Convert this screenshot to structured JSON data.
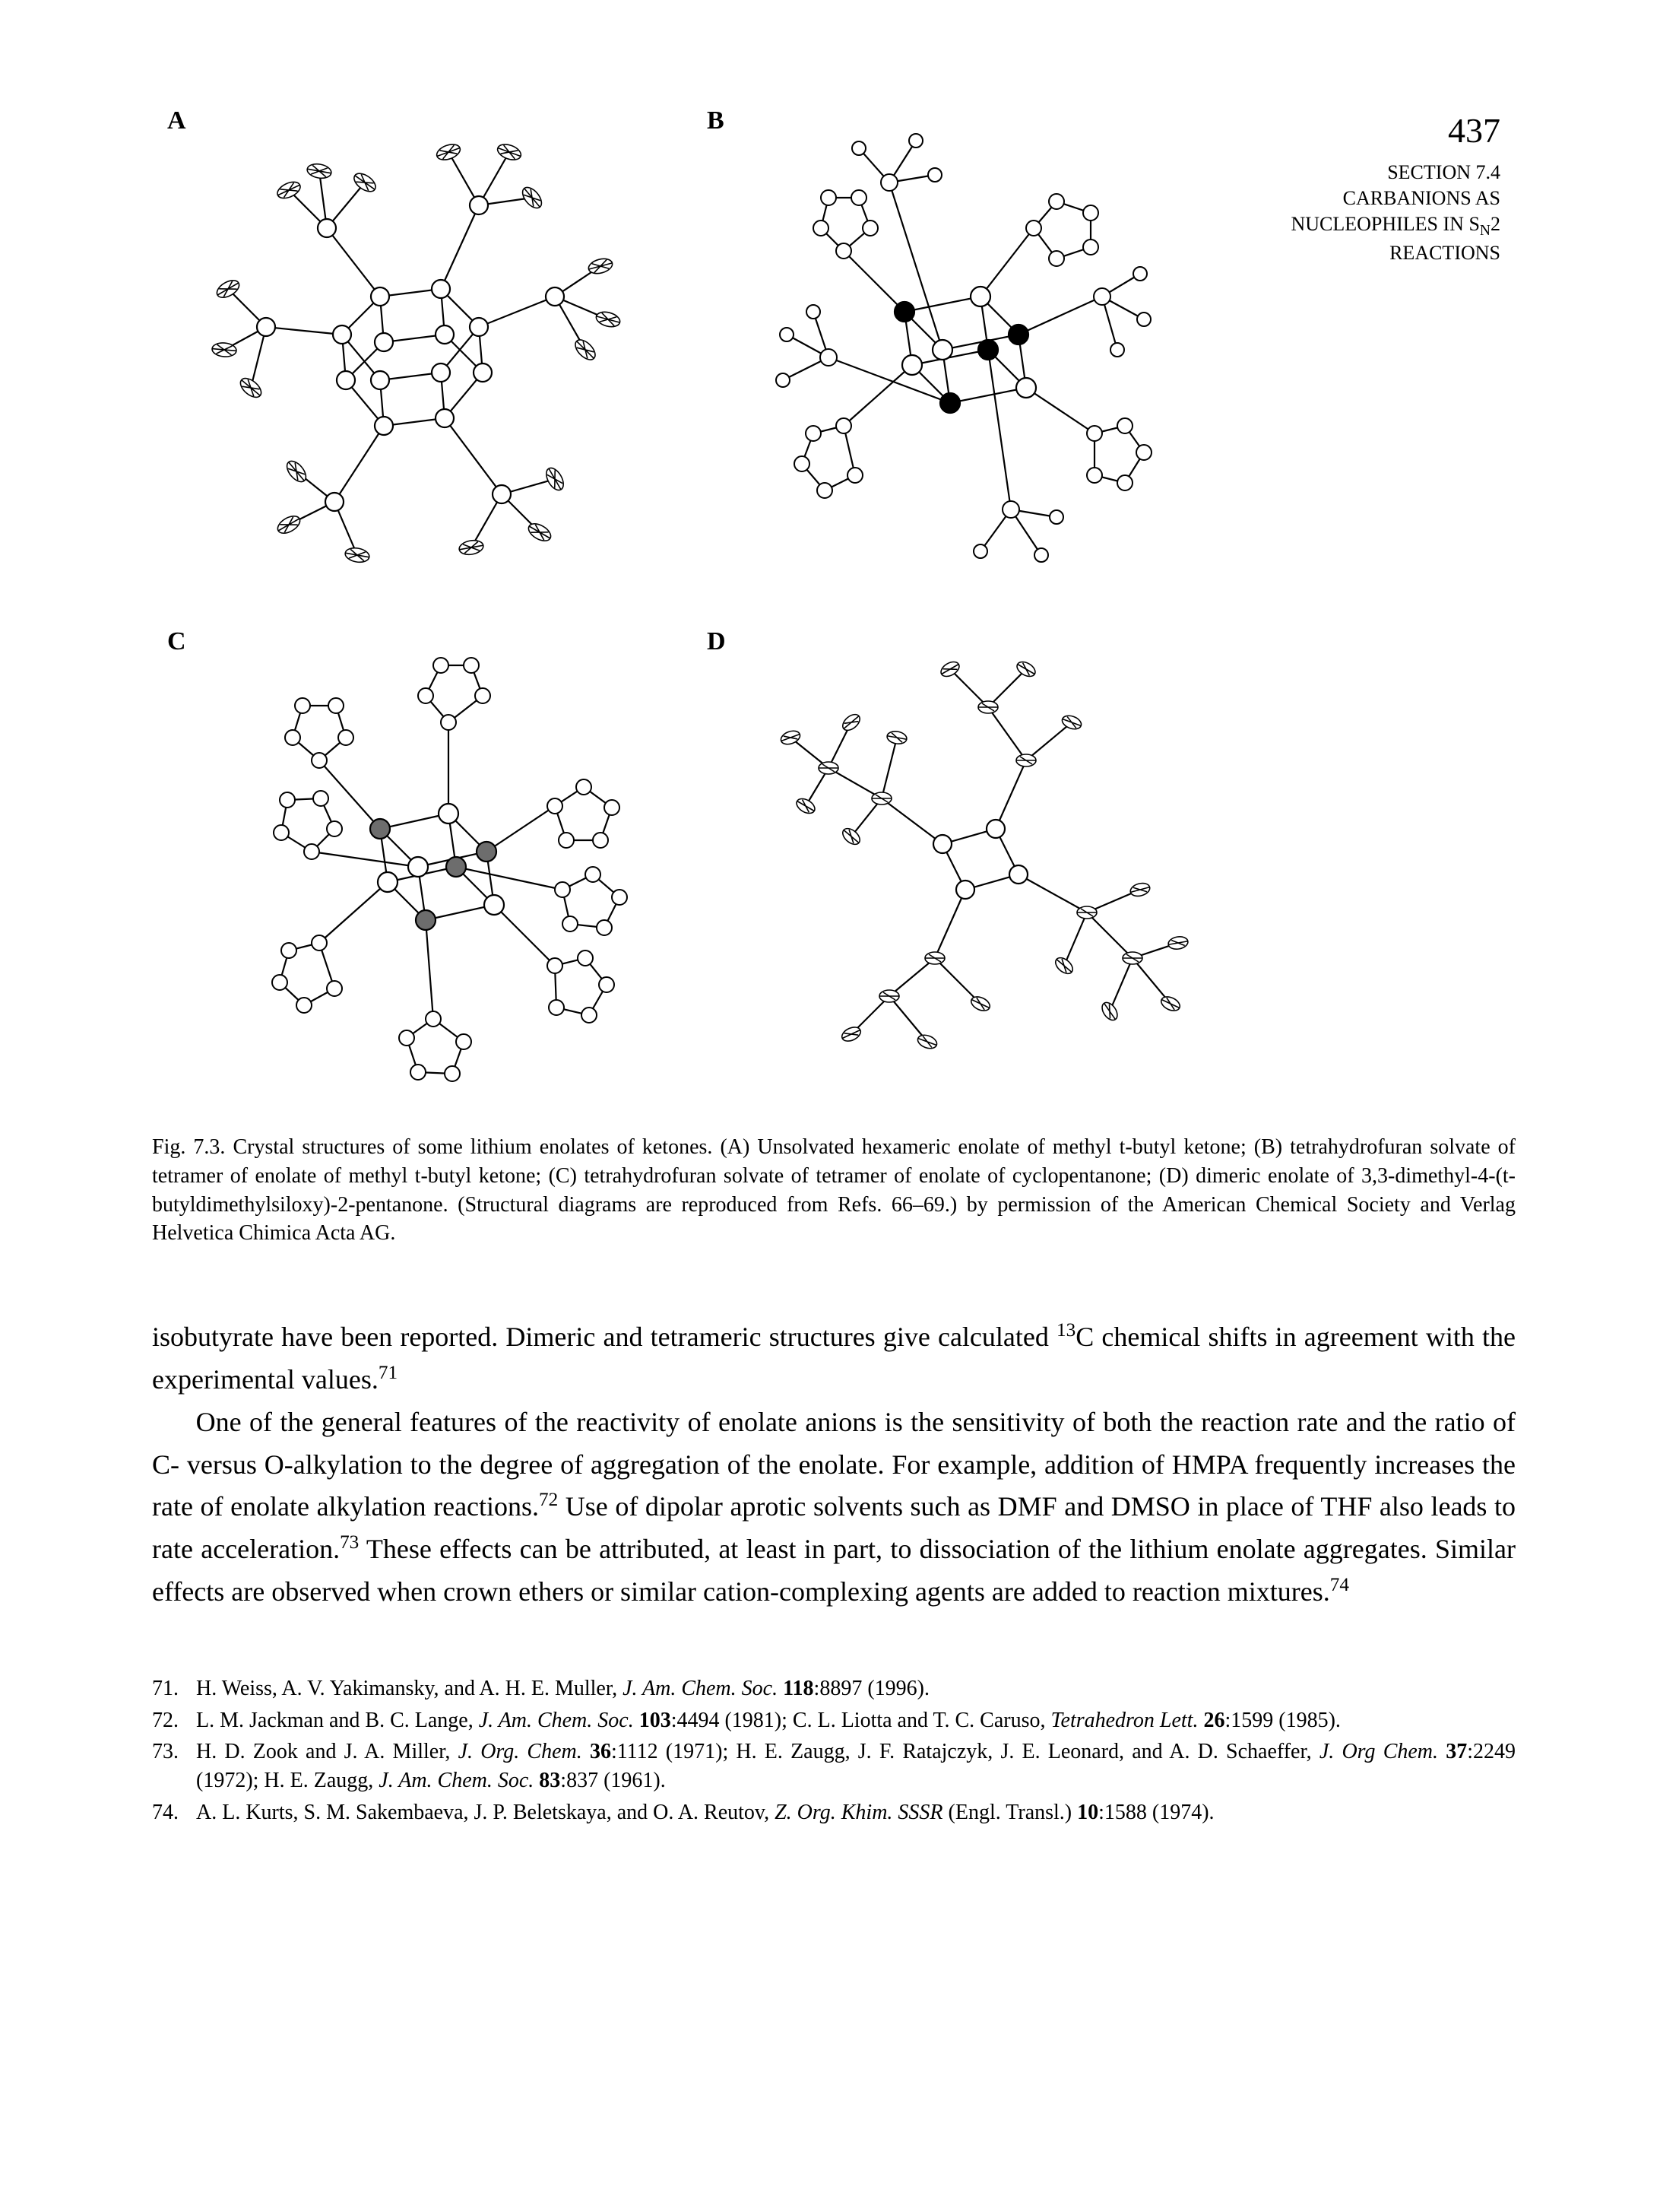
{
  "page_number": "437",
  "section_label_line1": "SECTION 7.4",
  "section_label_line2": "CARBANIONS AS",
  "section_label_line3": "NUCLEOPHILES IN S",
  "section_label_line3_sub": "N",
  "section_label_line3_tail": "2",
  "section_label_line4": "REACTIONS",
  "panel_labels": {
    "A": "A",
    "B": "B",
    "C": "C",
    "D": "D"
  },
  "figure_styling": {
    "type": "diagram",
    "panels": [
      "A",
      "B",
      "C",
      "D"
    ],
    "background_color": "#ffffff",
    "node_stroke": "#000000",
    "node_stroke_width": 2.2,
    "bond_stroke": "#000000",
    "bond_stroke_width": 2.2,
    "open_fill": "#ffffff",
    "solid_fill": "#000000",
    "shaded_fill": "#6d6d6d",
    "ellipse_rx": 14,
    "ellipse_ry": 8,
    "circle_r": 12,
    "small_r": 9
  },
  "caption_label": "Fig. 7.3.",
  "caption_text": "Crystal structures of some lithium enolates of ketones. (A) Unsolvated hexameric enolate of methyl t-butyl ketone; (B) tetrahydrofuran solvate of tetramer of enolate of methyl t-butyl ketone; (C) tetrahydrofuran solvate of tetramer of enolate of cyclopentanone; (D) dimeric enolate of 3,3-dimethyl-4-(t-butyldimethylsiloxy)-2-pentanone. (Structural diagrams are reproduced from Refs. 66–69.) by permission of the American Chemical Society and Verlag Helvetica Chimica Acta AG.",
  "body_para1_a": "isobutyrate have been reported. Dimeric and tetrameric structures give calculated ",
  "body_para1_sup1": "13",
  "body_para1_b": "C chemical shifts in agreement with the experimental values.",
  "body_para1_sup2": "71",
  "body_para2_a": "One of the general features of the reactivity of enolate anions is the sensitivity of both the reaction rate and the ratio of C- versus O-alkylation to the degree of aggregation of the enolate. For example, addition of HMPA frequently increases the rate of enolate alkylation reactions.",
  "body_para2_sup1": "72",
  "body_para2_b": " Use of dipolar aprotic solvents such as DMF and DMSO in place of THF also leads to rate acceleration.",
  "body_para2_sup2": "73",
  "body_para2_c": " These effects can be attributed, at least in part, to dissociation of the lithium enolate aggregates. Similar effects are observed when crown ethers or similar cation-complexing agents are added to reaction mixtures.",
  "body_para2_sup3": "74",
  "footnotes": [
    {
      "num": "71.",
      "html": "H. Weiss, A. V. Yakimansky, and A. H. E. Muller, <em>J. Am. Chem. Soc.</em> <b>118</b>:8897 (1996)."
    },
    {
      "num": "72.",
      "html": "L. M. Jackman and B. C. Lange, <em>J. Am. Chem. Soc.</em> <b>103</b>:4494 (1981); C. L. Liotta and T. C. Caruso, <em>Tetrahedron Lett.</em> <b>26</b>:1599 (1985)."
    },
    {
      "num": "73.",
      "html": "H. D. Zook and J. A. Miller, <em>J. Org. Chem.</em> <b>36</b>:1112 (1971); H. E. Zaugg, J. F. Ratajczyk, J. E. Leonard, and A. D. Schaeffer, <em>J. Org Chem.</em> <b>37</b>:2249 (1972); H. E. Zaugg, <em>J. Am. Chem. Soc.</em> <b>83</b>:837 (1961)."
    },
    {
      "num": "74.",
      "html": "A. L. Kurts, S. M. Sakembaeva, J. P. Beletskaya, and O. A. Reutov, <em>Z. Org. Khim. SSSR</em> (Engl. Transl.) <b>10</b>:1588 (1974)."
    }
  ]
}
